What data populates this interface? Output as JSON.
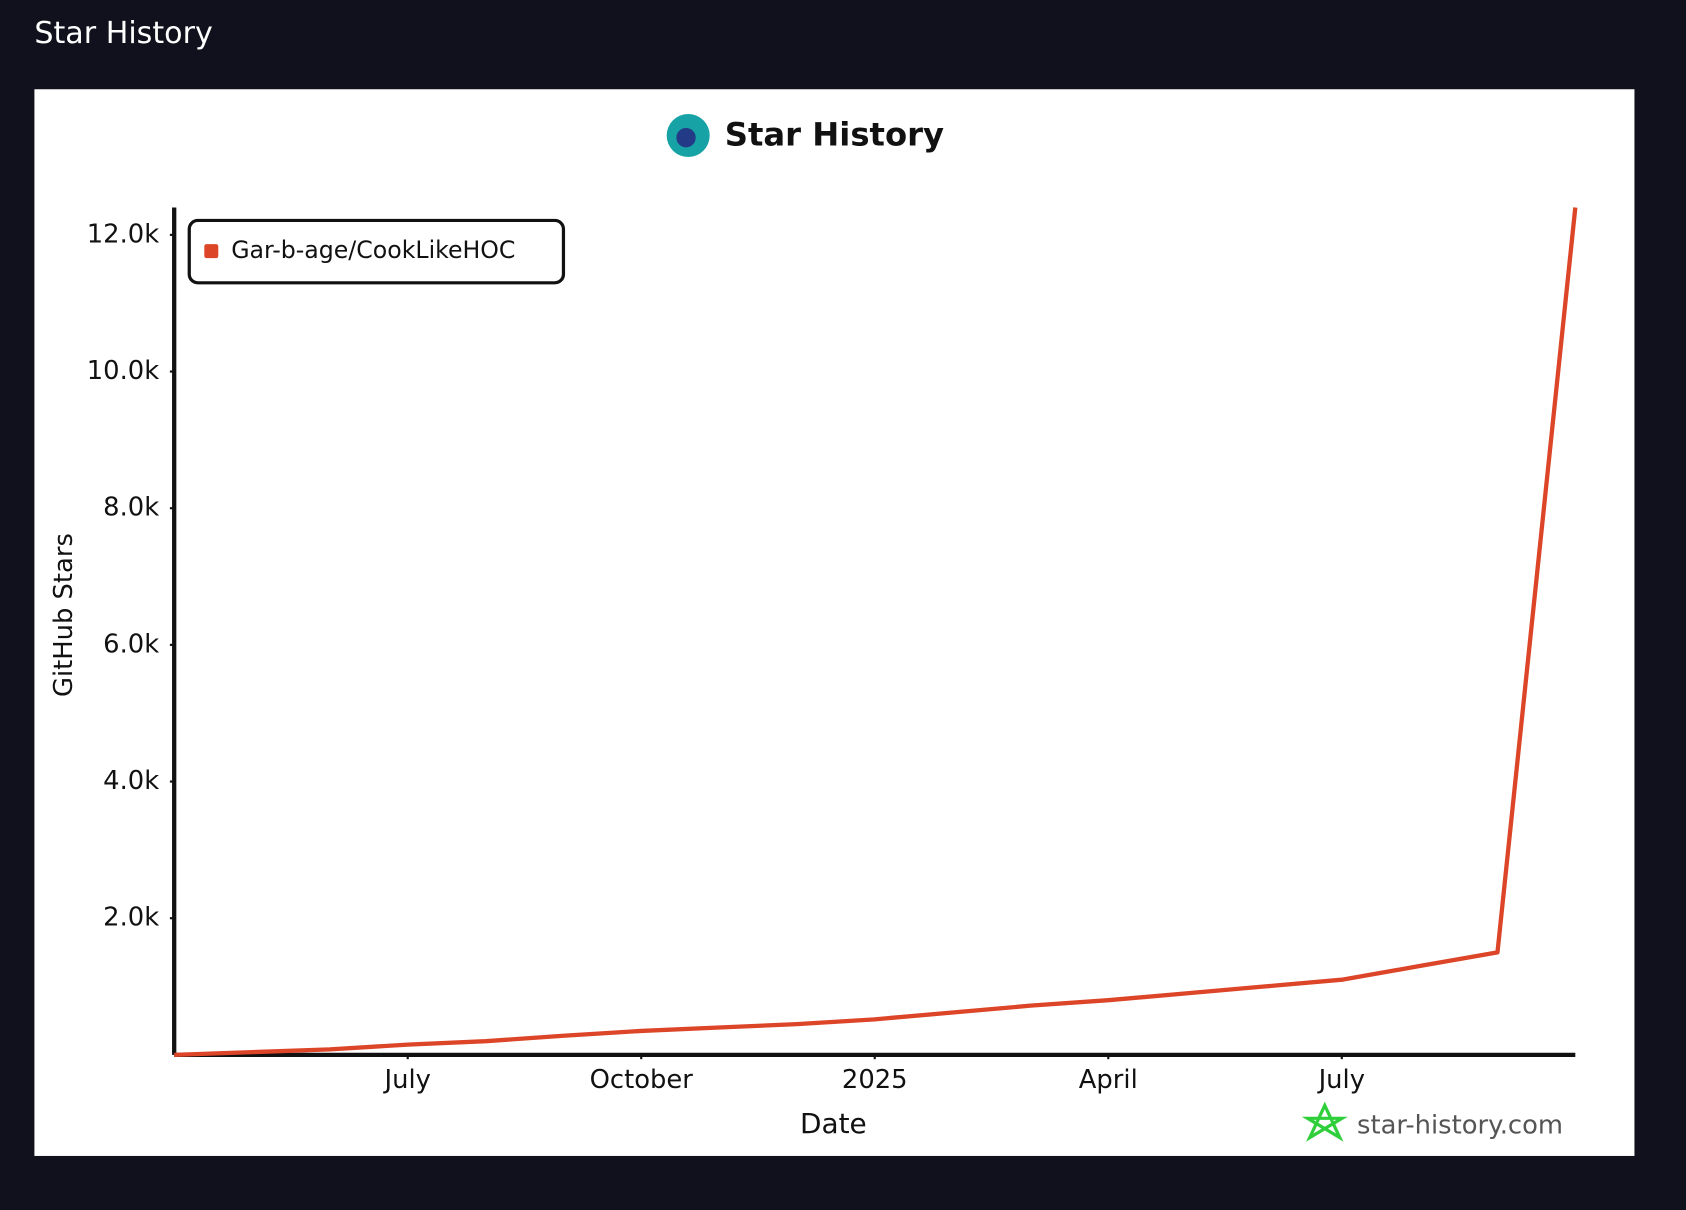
{
  "page_title": "Star History",
  "chart_data": {
    "type": "line",
    "title": "Star History",
    "x_label": "Date",
    "y_label": "GitHub Stars",
    "watermark": "star-history.com",
    "x": [
      "2024-04",
      "2024-05",
      "2024-06",
      "2024-07",
      "2024-08",
      "2024-09",
      "2024-10",
      "2024-11",
      "2024-12",
      "2025-01",
      "2025-02",
      "2025-03",
      "2025-04",
      "2025-05",
      "2025-06",
      "2025-07",
      "2025-08",
      "2025-09",
      "2025-10"
    ],
    "series": [
      {
        "name": "Gar-b-age/CookLikeHOC",
        "color": "#dd4528",
        "values": [
          0,
          40,
          80,
          150,
          200,
          280,
          350,
          400,
          450,
          520,
          620,
          720,
          800,
          900,
          1000,
          1100,
          1300,
          1500,
          12400
        ]
      }
    ],
    "xlim": [
      "2024-04",
      "2025-10"
    ],
    "xticks": [
      {
        "value": "2024-07",
        "label": "July"
      },
      {
        "value": "2024-10",
        "label": "October"
      },
      {
        "value": "2025-01",
        "label": "2025"
      },
      {
        "value": "2025-04",
        "label": "April"
      },
      {
        "value": "2025-07",
        "label": "July"
      }
    ],
    "ylim": [
      0,
      12400
    ],
    "yticks": [
      {
        "value": 2000,
        "label": "2.0k"
      },
      {
        "value": 4000,
        "label": "4.0k"
      },
      {
        "value": 6000,
        "label": "6.0k"
      },
      {
        "value": 8000,
        "label": "8.0k"
      },
      {
        "value": 10000,
        "label": "10.0k"
      },
      {
        "value": 12000,
        "label": "12.0k"
      }
    ],
    "legend": "top-left",
    "grid": false
  }
}
